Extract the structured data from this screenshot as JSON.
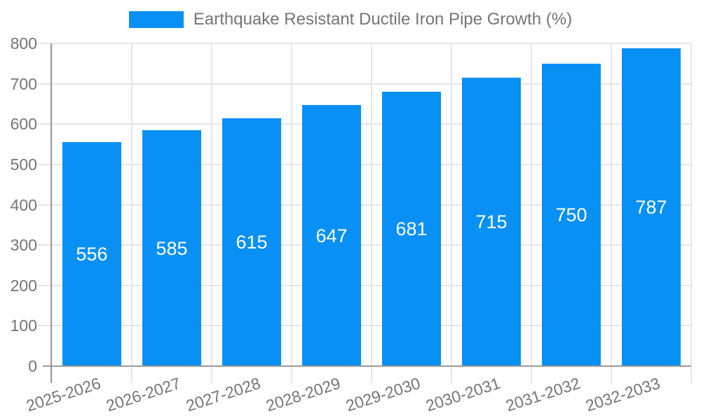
{
  "chart_data": {
    "type": "bar",
    "title": "Earthquake Resistant Ductile Iron Pipe Growth (%)",
    "categories": [
      "2025-2026",
      "2026-2027",
      "2027-2028",
      "2028-2029",
      "2029-2030",
      "2030-2031",
      "2031-2032",
      "2032-2033"
    ],
    "values": [
      556,
      585,
      615,
      647,
      681,
      715,
      750,
      787
    ],
    "xlabel": "",
    "ylabel": "",
    "ylim": [
      0,
      800
    ],
    "y_ticks": [
      0,
      100,
      200,
      300,
      400,
      500,
      600,
      700,
      800
    ],
    "grid": "on",
    "legend_position": "top",
    "bar_color": "#0890f4",
    "text_color": "#757575",
    "grid_color": "#e6e6e6",
    "axis_color": "#9a9a9a",
    "value_label_color": "#ffffff",
    "background_color": "#ffffff"
  }
}
